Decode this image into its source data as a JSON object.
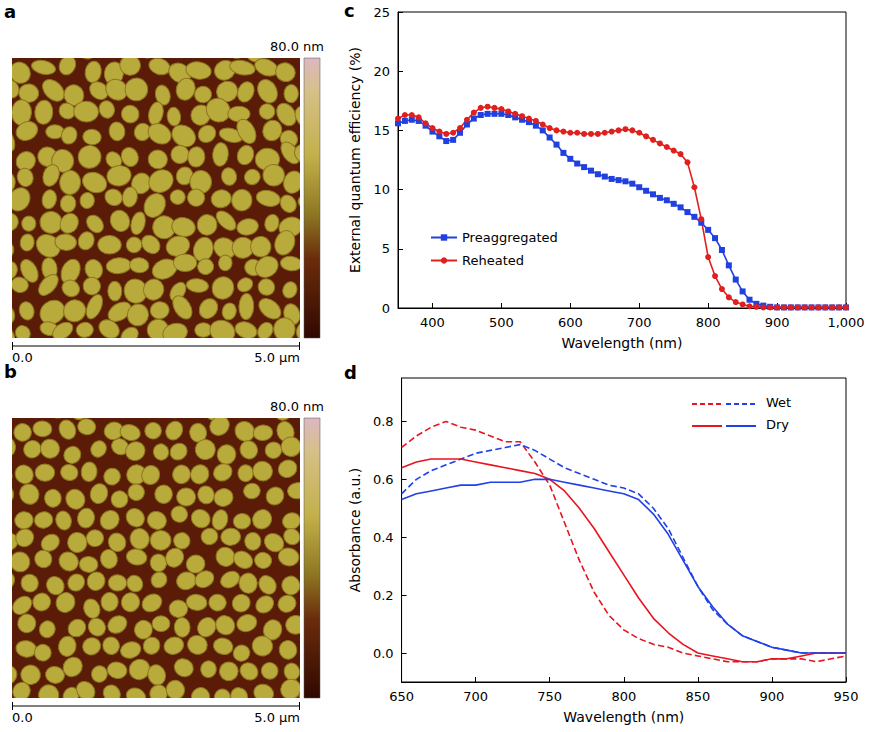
{
  "images": [
    {
      "panel_label": "a",
      "type": "afm_image",
      "colorbar_label": "80.0 nm",
      "scale_start": "0.0",
      "scale_end": "5.0 μm"
    },
    {
      "panel_label": "b",
      "type": "afm_image",
      "colorbar_label": "80.0 nm",
      "scale_start": "0.0",
      "scale_end": "5.0 μm"
    }
  ],
  "chart_data": [
    {
      "panel_label": "c",
      "type": "line",
      "x_label": "Wavelength (nm)",
      "y_label": "External quantum efficiency (%)",
      "xlim": [
        350,
        1000
      ],
      "xticks": [
        400,
        500,
        600,
        700,
        800,
        900,
        {
          "value": 1000,
          "label": "1,000"
        }
      ],
      "ylim": [
        0,
        25
      ],
      "yticks": [
        0,
        5,
        10,
        15,
        20,
        25
      ],
      "grid": false,
      "legend": "left",
      "x": [
        350,
        360,
        370,
        380,
        390,
        400,
        410,
        420,
        430,
        440,
        450,
        460,
        470,
        480,
        490,
        500,
        510,
        520,
        530,
        540,
        550,
        560,
        570,
        580,
        590,
        600,
        610,
        620,
        630,
        640,
        650,
        660,
        670,
        680,
        690,
        700,
        710,
        720,
        730,
        740,
        750,
        760,
        770,
        780,
        790,
        800,
        810,
        820,
        830,
        840,
        850,
        860,
        870,
        880,
        890,
        900,
        910,
        920,
        930,
        940,
        950,
        960,
        970,
        980,
        990,
        1000
      ],
      "series": [
        {
          "name": "Preaggregated",
          "color": "#2040e0",
          "marker": "square",
          "line_style": "solid",
          "values": [
            15.6,
            15.8,
            15.9,
            15.8,
            15.4,
            14.9,
            14.5,
            14.1,
            14.2,
            14.8,
            15.5,
            16.0,
            16.3,
            16.4,
            16.4,
            16.4,
            16.3,
            16.1,
            15.9,
            15.7,
            15.4,
            15.0,
            14.4,
            13.8,
            13.1,
            12.6,
            12.2,
            11.9,
            11.6,
            11.3,
            11.1,
            10.9,
            10.8,
            10.7,
            10.5,
            10.2,
            9.9,
            9.6,
            9.3,
            9.1,
            8.8,
            8.5,
            8.1,
            7.7,
            7.2,
            6.6,
            5.9,
            4.9,
            3.6,
            2.4,
            1.4,
            0.7,
            0.35,
            0.2,
            0.1,
            0.05,
            0.05,
            0.05,
            0.05,
            0.05,
            0.05,
            0.05,
            0.05,
            0.05,
            0.05,
            0.05
          ]
        },
        {
          "name": "Reheated",
          "color": "#e0201e",
          "marker": "circle",
          "line_style": "solid",
          "values": [
            16.0,
            16.3,
            16.3,
            16.1,
            15.6,
            15.2,
            14.9,
            14.7,
            14.8,
            15.2,
            15.9,
            16.5,
            16.9,
            17.0,
            16.9,
            16.8,
            16.6,
            16.4,
            16.2,
            16.0,
            15.8,
            15.5,
            15.2,
            15.0,
            14.9,
            14.8,
            14.8,
            14.7,
            14.7,
            14.7,
            14.8,
            14.9,
            15.0,
            15.1,
            15.0,
            14.8,
            14.5,
            14.2,
            13.9,
            13.6,
            13.3,
            13.0,
            12.3,
            10.2,
            7.5,
            4.3,
            2.7,
            1.6,
            0.9,
            0.5,
            0.3,
            0.15,
            0.1,
            0.05,
            0.05,
            0.05,
            0.05,
            0.05,
            0.05,
            0.05,
            0.05,
            0.05,
            0.05,
            0.05,
            0.05,
            0.05
          ]
        }
      ]
    },
    {
      "panel_label": "d",
      "type": "line",
      "x_label": "Wavelength (nm)",
      "y_label": "Absorbance (a.u.)",
      "xlim": [
        650,
        950
      ],
      "xticks": [
        650,
        700,
        750,
        800,
        850,
        900,
        950
      ],
      "ylim": [
        -0.1,
        0.95
      ],
      "yticks": [
        {
          "value": 0,
          "label": "0.0"
        },
        0.2,
        0.4,
        0.6,
        0.8
      ],
      "grid": false,
      "legend": "upper right",
      "x": [
        650,
        660,
        670,
        680,
        690,
        700,
        710,
        720,
        730,
        740,
        750,
        760,
        770,
        780,
        790,
        800,
        810,
        820,
        830,
        840,
        850,
        860,
        870,
        880,
        890,
        900,
        910,
        920,
        930,
        940,
        950
      ],
      "series": [
        {
          "name": "Wet",
          "color": "#e8141e",
          "marker": "none",
          "line_style": "dashed",
          "values": [
            0.71,
            0.75,
            0.78,
            0.8,
            0.78,
            0.77,
            0.75,
            0.73,
            0.73,
            0.66,
            0.58,
            0.45,
            0.32,
            0.21,
            0.13,
            0.08,
            0.05,
            0.03,
            0.02,
            0.0,
            -0.01,
            -0.02,
            -0.03,
            -0.03,
            -0.03,
            -0.02,
            -0.02,
            -0.02,
            -0.03,
            -0.02,
            -0.01
          ]
        },
        {
          "name": "Wet",
          "color": "#2040e8",
          "marker": "none",
          "line_style": "dashed",
          "values": [
            0.55,
            0.6,
            0.63,
            0.65,
            0.67,
            0.69,
            0.7,
            0.71,
            0.72,
            0.7,
            0.67,
            0.64,
            0.62,
            0.6,
            0.58,
            0.57,
            0.55,
            0.5,
            0.43,
            0.33,
            0.23,
            0.15,
            0.1,
            0.06,
            0.04,
            0.02,
            0.01,
            0.0,
            0.0,
            0.0,
            0.0
          ]
        },
        {
          "name": "Dry",
          "color": "#e8141e",
          "marker": "none",
          "line_style": "solid",
          "values": [
            0.64,
            0.66,
            0.67,
            0.67,
            0.67,
            0.66,
            0.65,
            0.64,
            0.63,
            0.62,
            0.6,
            0.56,
            0.5,
            0.43,
            0.35,
            0.27,
            0.19,
            0.12,
            0.07,
            0.03,
            0.0,
            -0.01,
            -0.02,
            -0.03,
            -0.03,
            -0.02,
            -0.02,
            -0.01,
            0.0,
            0.0,
            0.0
          ]
        },
        {
          "name": "Dry",
          "color": "#2040e8",
          "marker": "none",
          "line_style": "solid",
          "values": [
            0.53,
            0.55,
            0.56,
            0.57,
            0.58,
            0.58,
            0.59,
            0.59,
            0.59,
            0.6,
            0.6,
            0.59,
            0.58,
            0.57,
            0.56,
            0.55,
            0.53,
            0.48,
            0.41,
            0.32,
            0.23,
            0.16,
            0.1,
            0.06,
            0.04,
            0.02,
            0.01,
            0.0,
            0.0,
            0.0,
            0.0
          ]
        }
      ]
    }
  ]
}
